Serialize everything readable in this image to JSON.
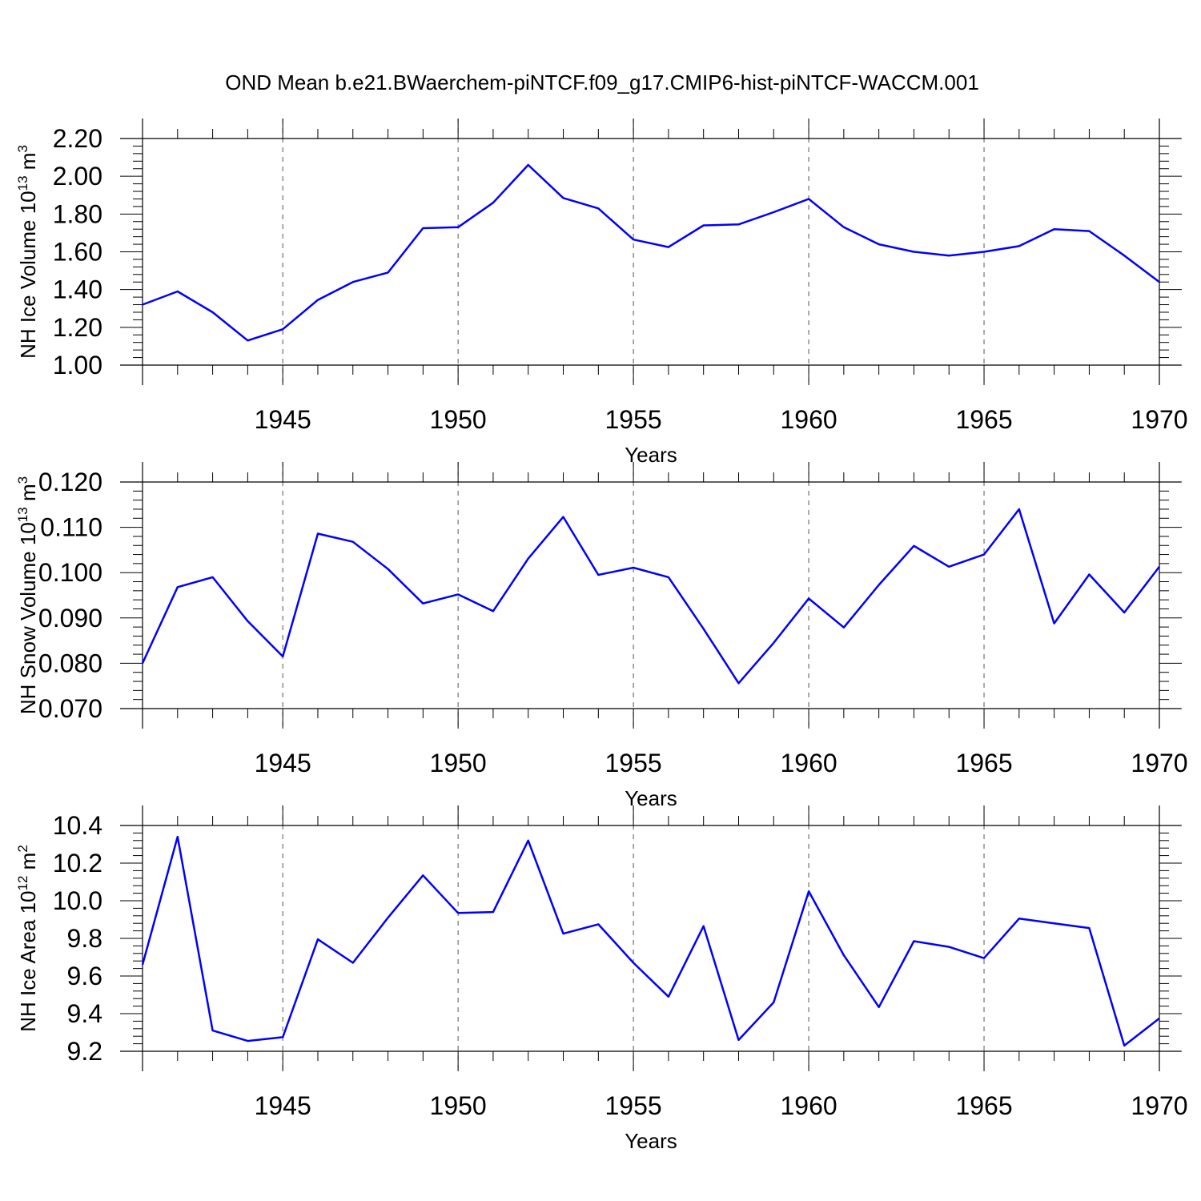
{
  "title": "OND Mean b.e21.BWaerchem-piNTCF.f09_g17.CMIP6-hist-piNTCF-WACCM.001",
  "colors": {
    "line": "#0000ff",
    "axes": "#000000",
    "grid": "#555555"
  },
  "chart_data": [
    {
      "type": "line",
      "ylabel": {
        "base": "NH Ice Volume 10",
        "exp": "13",
        "unit": " m",
        "unit_exp": "3"
      },
      "xlabel": "Years",
      "xlim": [
        1941,
        1970
      ],
      "xticks": [
        1945,
        1950,
        1955,
        1960,
        1965,
        1970
      ],
      "xtick_labels": [
        "1945",
        "1950",
        "1955",
        "1960",
        "1965",
        "1970"
      ],
      "ylim": [
        1.0,
        2.2
      ],
      "yticks": [
        1.0,
        1.2,
        1.4,
        1.6,
        1.8,
        2.0,
        2.2
      ],
      "ytick_labels": [
        "1.00",
        "1.20",
        "1.40",
        "1.60",
        "1.80",
        "2.00",
        "2.20"
      ],
      "grid": "vertical dashed at major x ticks",
      "series": [
        {
          "name": "NH Ice Volume",
          "x": [
            1941,
            1942,
            1943,
            1944,
            1945,
            1946,
            1947,
            1948,
            1949,
            1950,
            1951,
            1952,
            1953,
            1954,
            1955,
            1956,
            1957,
            1958,
            1959,
            1960,
            1961,
            1962,
            1963,
            1964,
            1965,
            1966,
            1967,
            1968,
            1969,
            1970
          ],
          "values": [
            1.32,
            1.39,
            1.28,
            1.13,
            1.19,
            1.345,
            1.44,
            1.49,
            1.725,
            1.73,
            1.86,
            2.06,
            1.885,
            1.83,
            1.665,
            1.625,
            1.74,
            1.745,
            1.81,
            1.88,
            1.73,
            1.64,
            1.6,
            1.58,
            1.6,
            1.63,
            1.72,
            1.71,
            1.58,
            1.44
          ]
        }
      ]
    },
    {
      "type": "line",
      "ylabel": {
        "base": "NH Snow Volume 10",
        "exp": "13",
        "unit": " m",
        "unit_exp": "3"
      },
      "xlabel": "Years",
      "xlim": [
        1941,
        1970
      ],
      "xticks": [
        1945,
        1950,
        1955,
        1960,
        1965,
        1970
      ],
      "xtick_labels": [
        "1945",
        "1950",
        "1955",
        "1960",
        "1965",
        "1970"
      ],
      "ylim": [
        0.07,
        0.12
      ],
      "yticks": [
        0.07,
        0.08,
        0.09,
        0.1,
        0.11,
        0.12
      ],
      "ytick_labels": [
        "0.070",
        "0.080",
        "0.090",
        "0.100",
        "0.110",
        "0.120"
      ],
      "grid": "vertical dashed at major x ticks",
      "series": [
        {
          "name": "NH Snow Volume",
          "x": [
            1941,
            1942,
            1943,
            1944,
            1945,
            1946,
            1947,
            1948,
            1949,
            1950,
            1951,
            1952,
            1953,
            1954,
            1955,
            1956,
            1957,
            1958,
            1959,
            1960,
            1961,
            1962,
            1963,
            1964,
            1965,
            1966,
            1967,
            1968,
            1969,
            1970
          ],
          "values": [
            0.08,
            0.0968,
            0.099,
            0.0893,
            0.0815,
            0.1086,
            0.1068,
            0.1008,
            0.0932,
            0.0952,
            0.0915,
            0.1031,
            0.1123,
            0.0995,
            0.1011,
            0.099,
            0.0876,
            0.0756,
            0.0845,
            0.0943,
            0.0879,
            0.0973,
            0.1059,
            0.1013,
            0.104,
            0.114,
            0.0888,
            0.0996,
            0.0912,
            0.1013
          ]
        }
      ]
    },
    {
      "type": "line",
      "ylabel": {
        "base": "NH Ice Area 10",
        "exp": "12",
        "unit": " m",
        "unit_exp": "2"
      },
      "xlabel": "Years",
      "xlim": [
        1941,
        1970
      ],
      "xticks": [
        1945,
        1950,
        1955,
        1960,
        1965,
        1970
      ],
      "xtick_labels": [
        "1945",
        "1950",
        "1955",
        "1960",
        "1965",
        "1970"
      ],
      "ylim": [
        9.2,
        10.4
      ],
      "yticks": [
        9.2,
        9.4,
        9.6,
        9.8,
        10.0,
        10.2,
        10.4
      ],
      "ytick_labels": [
        "9.2",
        "9.4",
        "9.6",
        "9.8",
        "10.0",
        "10.2",
        "10.4"
      ],
      "grid": "vertical dashed at major x ticks",
      "series": [
        {
          "name": "NH Ice Area",
          "x": [
            1941,
            1942,
            1943,
            1944,
            1945,
            1946,
            1947,
            1948,
            1949,
            1950,
            1951,
            1952,
            1953,
            1954,
            1955,
            1956,
            1957,
            1958,
            1959,
            1960,
            1961,
            1962,
            1963,
            1964,
            1965,
            1966,
            1967,
            1968,
            1969,
            1970
          ],
          "values": [
            9.66,
            10.34,
            9.31,
            9.255,
            9.275,
            9.795,
            9.67,
            9.91,
            10.135,
            9.935,
            9.94,
            10.32,
            9.825,
            9.875,
            9.67,
            9.49,
            9.865,
            9.26,
            9.46,
            10.05,
            9.71,
            9.435,
            9.785,
            9.755,
            9.695,
            9.905,
            9.88,
            9.855,
            9.23,
            9.375
          ]
        }
      ]
    }
  ]
}
